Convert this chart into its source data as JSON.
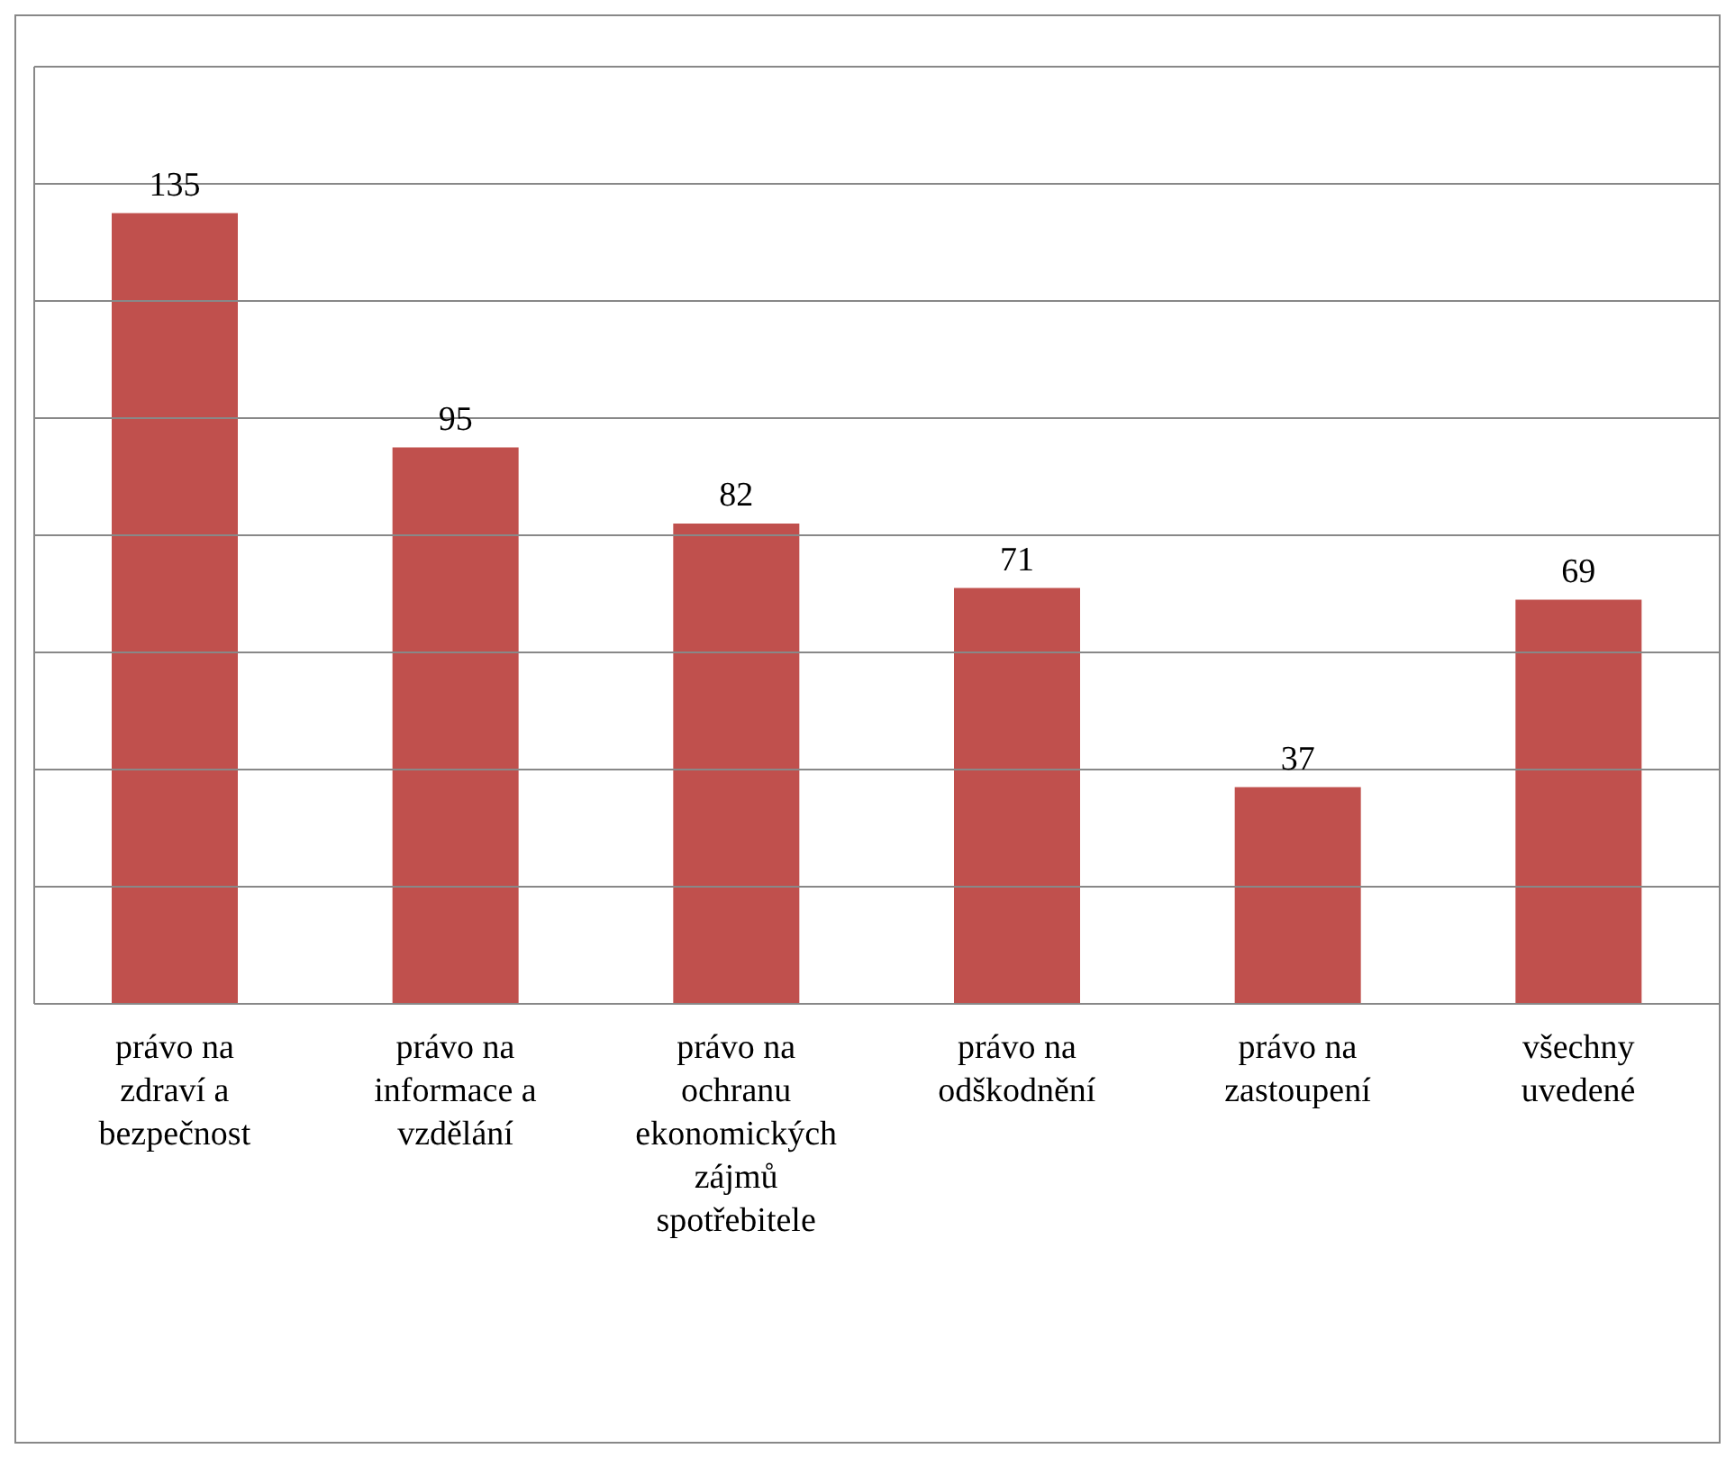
{
  "chart_data": {
    "type": "bar",
    "categories": [
      "právo na zdraví a bezpečnost",
      "právo na informace a vzdělání",
      "právo na ochranu ekonomických zájmů spotřebitele",
      "právo na odškodnění",
      "právo na zastoupení",
      "všechny uvedené"
    ],
    "values": [
      135,
      95,
      82,
      71,
      37,
      69
    ],
    "color": "#c0504d",
    "data_labels": true,
    "ylim": [
      0,
      160
    ],
    "yticks": [
      {
        "value": 0,
        "label": null
      },
      {
        "value": 20,
        "label": null
      },
      {
        "value": 40,
        "label": null
      },
      {
        "value": 60,
        "label": null
      },
      {
        "value": 80,
        "label": null
      },
      {
        "value": 100,
        "label": null
      },
      {
        "value": 120,
        "label": null
      },
      {
        "value": 140,
        "label": null
      },
      {
        "value": 160,
        "label": null
      }
    ],
    "tick_labels": "x",
    "grid": "y",
    "legend": false
  }
}
